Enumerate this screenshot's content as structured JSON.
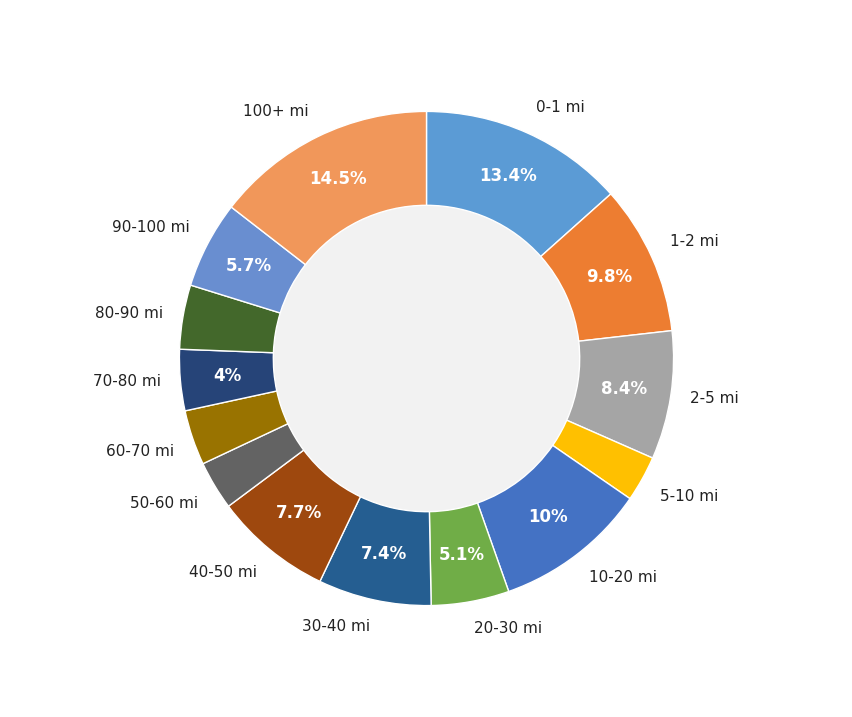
{
  "chart_data": {
    "type": "donut",
    "categories": [
      "0-1 mi",
      "1-2 mi",
      "2-5 mi",
      "5-10 mi",
      "10-20 mi",
      "20-30 mi",
      "30-40 mi",
      "40-50 mi",
      "50-60 mi",
      "60-70 mi",
      "70-80 mi",
      "80-90 mi",
      "90-100 mi",
      "100+ mi"
    ],
    "values": [
      13.4,
      9.8,
      8.4,
      3.0,
      10,
      5.1,
      7.4,
      7.7,
      3.2,
      3.6,
      4,
      4.2,
      5.7,
      14.5
    ],
    "value_labels": [
      "13.4%",
      "9.8%",
      "8.4%",
      null,
      "10%",
      "5.1%",
      "7.4%",
      "7.7%",
      null,
      null,
      "4%",
      null,
      "5.7%",
      "14.5%"
    ],
    "data_labels": true,
    "colors": [
      "#5b9bd5",
      "#ed7d31",
      "#a5a5a5",
      "#ffc000",
      "#4472c4",
      "#70ad47",
      "#255e91",
      "#9e480e",
      "#636363",
      "#997300",
      "#264478",
      "#43682b",
      "#698ed0",
      "#f1975a"
    ]
  }
}
